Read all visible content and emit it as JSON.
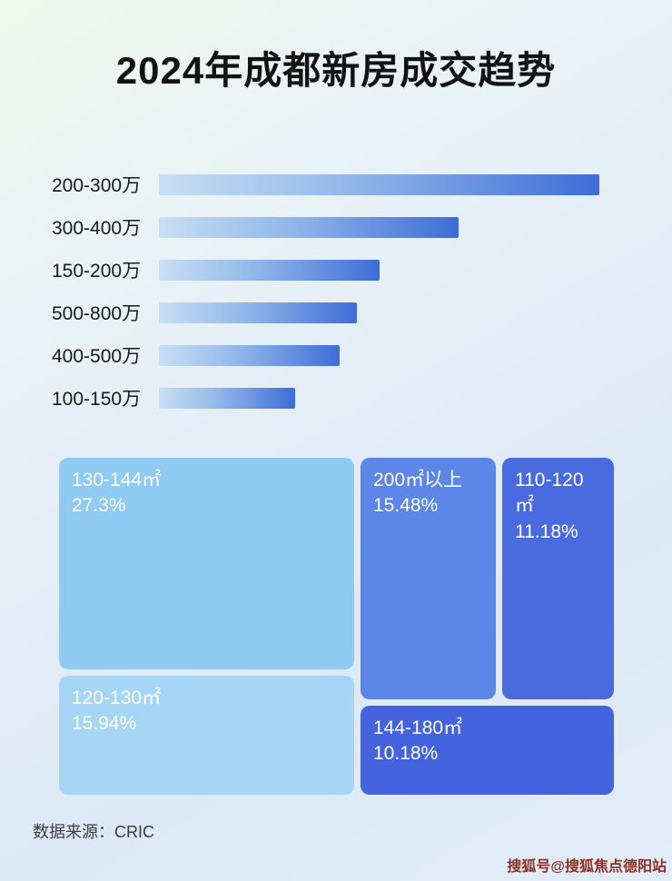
{
  "page": {
    "title": "2024年成都新房成交趋势",
    "source": "数据来源：CRIC",
    "watermark": "搜狐号@搜狐焦点德阳站"
  },
  "colors": {
    "bar_gradient_start": "#c9dff4",
    "bar_gradient_end": "#3e6cd8",
    "treemap_light_blue": "#8fcbf2",
    "treemap_lighter_blue": "#a5d6f5",
    "treemap_medium_blue": "#5c86e8",
    "treemap_royal_blue": "#4a6be0",
    "treemap_dark_blue": "#4463de",
    "watermark_red": "#8d2f23"
  },
  "chart_data": [
    {
      "type": "bar",
      "orientation": "horizontal",
      "title": "2024年成都新房成交趋势",
      "categories": [
        "200-300万",
        "300-400万",
        "150-200万",
        "500-800万",
        "400-500万",
        "100-150万"
      ],
      "values": [
        100,
        68,
        50,
        45,
        41,
        31
      ],
      "value_note": "no axis shown; values are bar lengths as percent of longest bar",
      "xlabel": "",
      "ylabel": "",
      "grid": false,
      "legend": false
    },
    {
      "type": "treemap",
      "items": [
        {
          "label": "130-144㎡",
          "value": 27.3,
          "pct_label": "27.3%"
        },
        {
          "label": "120-130㎡",
          "value": 15.94,
          "pct_label": "15.94%"
        },
        {
          "label": "200㎡以上",
          "value": 15.48,
          "pct_label": "15.48%"
        },
        {
          "label": "110-120㎡",
          "value": 11.18,
          "pct_label": "11.18%"
        },
        {
          "label": "144-180㎡",
          "value": 10.18,
          "pct_label": "10.18%"
        }
      ]
    }
  ]
}
